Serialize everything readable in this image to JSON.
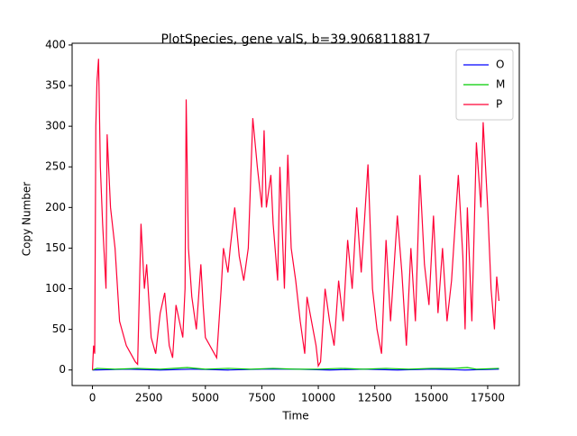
{
  "chart_data": {
    "type": "line",
    "title": "PlotSpecies, gene valS, b=39.9068118817",
    "x_label": "Time",
    "y_label": "Copy Number",
    "xlim": [
      -900,
      18900
    ],
    "ylim": [
      -19.15,
      402.15
    ],
    "xticks": [
      0,
      2500,
      5000,
      7500,
      10000,
      12500,
      15000,
      17500
    ],
    "yticks": [
      0,
      50,
      100,
      150,
      200,
      250,
      300,
      350,
      400
    ],
    "legend": "upper right",
    "series": [
      {
        "name": "O",
        "color": "#0000ff",
        "x": [
          0,
          1500,
          3000,
          4500,
          6000,
          7500,
          9000,
          10500,
          12000,
          13500,
          15000,
          16500,
          18000
        ],
        "values": [
          0,
          1,
          0,
          1,
          0,
          1,
          1,
          0,
          1,
          0,
          1,
          0,
          1
        ]
      },
      {
        "name": "M",
        "color": "#00cc00",
        "x": [
          0,
          200,
          1000,
          2000,
          3000,
          4200,
          5000,
          6000,
          7000,
          8000,
          9000,
          10000,
          11000,
          12000,
          13000,
          14000,
          15000,
          16000,
          16600,
          17000,
          18000
        ],
        "values": [
          0,
          2,
          1,
          2,
          1,
          3,
          1,
          2,
          1,
          2,
          1,
          1,
          2,
          1,
          2,
          1,
          2,
          2,
          3,
          1,
          2
        ]
      },
      {
        "name": "P",
        "color": "#ff0036",
        "x": [
          0,
          50,
          100,
          150,
          200,
          270,
          350,
          450,
          600,
          650,
          800,
          1000,
          1200,
          1500,
          1900,
          2000,
          2150,
          2300,
          2400,
          2600,
          2800,
          3000,
          3200,
          3400,
          3550,
          3700,
          3850,
          4000,
          4100,
          4150,
          4250,
          4400,
          4600,
          4800,
          4900,
          5000,
          5400,
          5500,
          5700,
          5800,
          6000,
          6100,
          6300,
          6500,
          6700,
          6900,
          7100,
          7300,
          7500,
          7600,
          7700,
          7900,
          8000,
          8200,
          8300,
          8500,
          8650,
          8800,
          9000,
          9200,
          9400,
          9500,
          9700,
          9900,
          10000,
          10100,
          10300,
          10500,
          10700,
          10900,
          11100,
          11300,
          11500,
          11700,
          11900,
          12200,
          12400,
          12600,
          12800,
          13000,
          13200,
          13500,
          13700,
          13900,
          14100,
          14300,
          14500,
          14700,
          14900,
          15100,
          15300,
          15500,
          15700,
          15900,
          16200,
          16400,
          16500,
          16600,
          16800,
          17000,
          17200,
          17300,
          17500,
          17650,
          17800,
          17900,
          18000
        ],
        "values": [
          0,
          30,
          20,
          300,
          355,
          383,
          250,
          180,
          100,
          290,
          200,
          150,
          60,
          30,
          10,
          7,
          180,
          100,
          130,
          40,
          20,
          70,
          95,
          30,
          15,
          80,
          60,
          40,
          100,
          333,
          150,
          90,
          50,
          130,
          80,
          40,
          20,
          15,
          100,
          150,
          120,
          150,
          200,
          140,
          110,
          150,
          310,
          250,
          200,
          295,
          200,
          240,
          180,
          110,
          250,
          100,
          265,
          150,
          110,
          60,
          20,
          90,
          60,
          30,
          5,
          10,
          100,
          60,
          30,
          110,
          60,
          160,
          100,
          200,
          120,
          253,
          100,
          50,
          20,
          160,
          60,
          190,
          120,
          30,
          150,
          60,
          240,
          130,
          80,
          190,
          70,
          150,
          60,
          110,
          240,
          140,
          50,
          200,
          60,
          280,
          200,
          305,
          200,
          100,
          50,
          115,
          85
        ]
      }
    ]
  }
}
